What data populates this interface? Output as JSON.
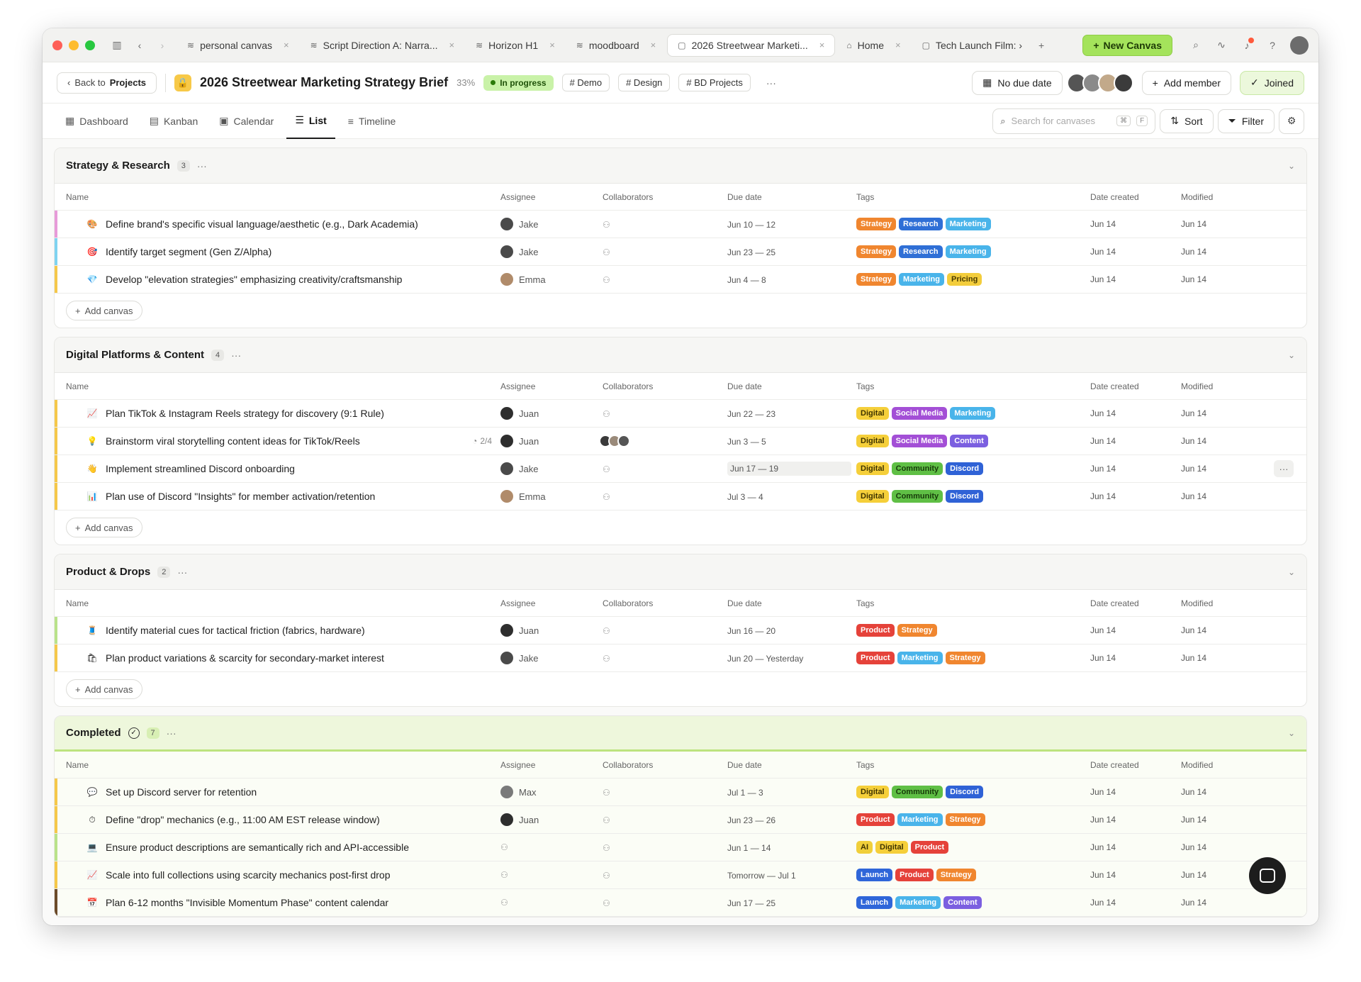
{
  "tabs": [
    {
      "label": "personal canvas",
      "glyph": "≋",
      "closable": true
    },
    {
      "label": "Script Direction A: Narra...",
      "glyph": "≋",
      "closable": true
    },
    {
      "label": "Horizon H1",
      "glyph": "≋",
      "closable": true
    },
    {
      "label": "moodboard",
      "glyph": "≋",
      "closable": true
    },
    {
      "label": "2026 Streetwear Marketi...",
      "glyph": "▢",
      "closable": true,
      "active": true
    },
    {
      "label": "Home",
      "glyph": "⌂",
      "closable": true
    },
    {
      "label": "Tech Launch Film: ›",
      "glyph": "▢",
      "closable": false
    }
  ],
  "toolbar": {
    "new_canvas": "New Canvas",
    "add_tab": "+"
  },
  "header": {
    "back_prefix": "Back to",
    "back_target": "Projects",
    "title": "2026 Streetwear Marketing Strategy Brief",
    "percent": "33%",
    "status": "In progress",
    "tags": [
      "# Demo",
      "# Design",
      "# BD Projects"
    ],
    "more": "···",
    "due": "No due date",
    "add_member": "Add member",
    "joined": "Joined"
  },
  "views": {
    "items": [
      "Dashboard",
      "Kanban",
      "Calendar",
      "List",
      "Timeline"
    ],
    "active": "List",
    "search_placeholder": "Search for canvases",
    "kbd1": "⌘",
    "kbd2": "F",
    "sort": "Sort",
    "filter": "Filter"
  },
  "columns": {
    "name": "Name",
    "assignee": "Assignee",
    "collaborators": "Collaborators",
    "due": "Due date",
    "tags": "Tags",
    "created": "Date created",
    "modified": "Modified"
  },
  "add_canvas": "Add canvas",
  "groups": [
    {
      "title": "Strategy & Research",
      "count": "3",
      "rows": [
        {
          "emoji": "🎨",
          "name": "Define brand's specific visual language/aesthetic (e.g., Dark Academia)",
          "assignee": "Jake",
          "due": "Jun 10 — 12",
          "tags": [
            "Strategy",
            "Research",
            "Marketing"
          ],
          "created": "Jun 14",
          "modified": "Jun 14",
          "bar": "#e79bd9"
        },
        {
          "emoji": "🎯",
          "name": "Identify target segment (Gen Z/Alpha)",
          "assignee": "Jake",
          "due": "Jun 23 — 25",
          "tags": [
            "Strategy",
            "Research",
            "Marketing"
          ],
          "created": "Jun 14",
          "modified": "Jun 14",
          "bar": "#7fd3f0"
        },
        {
          "emoji": "💎",
          "name": "Develop \"elevation strategies\" emphasizing creativity/craftsmanship",
          "assignee": "Emma",
          "due": "Jun 4 — 8",
          "tags": [
            "Strategy",
            "Marketing",
            "Pricing"
          ],
          "created": "Jun 14",
          "modified": "Jun 14",
          "bar": "#f5c84a"
        }
      ]
    },
    {
      "title": "Digital Platforms & Content",
      "count": "4",
      "rows": [
        {
          "emoji": "📈",
          "name": "Plan TikTok & Instagram Reels strategy for discovery (9:1 Rule)",
          "assignee": "Juan",
          "due": "Jun 22 — 23",
          "tags": [
            "Digital",
            "Social Media",
            "Marketing"
          ],
          "created": "Jun 14",
          "modified": "Jun 14",
          "bar": "#f5c84a"
        },
        {
          "emoji": "💡",
          "name": "Brainstorm viral storytelling content ideas for TikTok/Reels",
          "progress": "2/4",
          "assignee": "Juan",
          "collab": true,
          "due": "Jun 3 — 5",
          "tags": [
            "Digital",
            "Social Media",
            "Content"
          ],
          "created": "Jun 14",
          "modified": "Jun 14",
          "bar": "#f5c84a"
        },
        {
          "emoji": "👋",
          "name": "Implement streamlined Discord onboarding",
          "assignee": "Jake",
          "due": "Jun 17 — 19",
          "due_hl": true,
          "tags": [
            "Digital",
            "Community",
            "Discord"
          ],
          "created": "Jun 14",
          "modified": "Jun 14",
          "bar": "#f5c84a",
          "more": "···"
        },
        {
          "emoji": "📊",
          "name": "Plan use of Discord \"Insights\" for member activation/retention",
          "assignee": "Emma",
          "due": "Jul 3 — 4",
          "tags": [
            "Digital",
            "Community",
            "Discord"
          ],
          "created": "Jun 14",
          "modified": "Jun 14",
          "bar": "#f5c84a"
        }
      ]
    },
    {
      "title": "Product & Drops",
      "count": "2",
      "rows": [
        {
          "emoji": "🧵",
          "name": "Identify material cues for tactical friction (fabrics, hardware)",
          "assignee": "Juan",
          "due": "Jun 16 — 20",
          "tags": [
            "Product",
            "Strategy"
          ],
          "created": "Jun 14",
          "modified": "Jun 14",
          "bar": "#b9e28a"
        },
        {
          "emoji": "🛍",
          "name": "Plan product variations & scarcity for secondary-market interest",
          "assignee": "Jake",
          "due": "Jun 20 — Yesterday",
          "tags": [
            "Product",
            "Marketing",
            "Strategy"
          ],
          "created": "Jun 14",
          "modified": "Jun 14",
          "bar": "#f5c84a"
        }
      ]
    }
  ],
  "completed": {
    "title": "Completed",
    "count": "7",
    "rows": [
      {
        "emoji": "💬",
        "name": "Set up Discord server for retention",
        "assignee": "Max",
        "due": "Jul 1 — 3",
        "tags": [
          "Digital",
          "Community",
          "Discord"
        ],
        "created": "Jun 14",
        "modified": "Jun 14",
        "bar": "#f5c84a"
      },
      {
        "emoji": "⏱",
        "name": "Define \"drop\" mechanics (e.g., 11:00 AM EST release window)",
        "assignee": "Juan",
        "due": "Jun 23 — 26",
        "tags": [
          "Product",
          "Marketing",
          "Strategy"
        ],
        "created": "Jun 14",
        "modified": "Jun 14",
        "bar": "#f5c84a"
      },
      {
        "emoji": "💻",
        "name": "Ensure product descriptions are semantically rich and API-accessible",
        "assignee": "",
        "due": "Jun 1 — 14",
        "tags": [
          "AI",
          "Digital",
          "Product"
        ],
        "created": "Jun 14",
        "modified": "Jun 14",
        "bar": "#b9e28a"
      },
      {
        "emoji": "📈",
        "name": "Scale into full collections using scarcity mechanics post-first drop",
        "assignee": "",
        "due": "Tomorrow — Jul 1",
        "tags": [
          "Launch",
          "Product",
          "Strategy"
        ],
        "created": "Jun 14",
        "modified": "Jun 14",
        "bar": "#f5c84a"
      },
      {
        "emoji": "📅",
        "name": "Plan 6-12 months \"Invisible Momentum Phase\" content calendar",
        "assignee": "",
        "due": "Jun 17 — 25",
        "tags": [
          "Launch",
          "Marketing",
          "Content"
        ],
        "created": "Jun 14",
        "modified": "Jun 14",
        "bar": "#6b4a2a"
      }
    ]
  },
  "colors": {
    "accent": "#a4e35b",
    "status": "#c9f2a8"
  }
}
